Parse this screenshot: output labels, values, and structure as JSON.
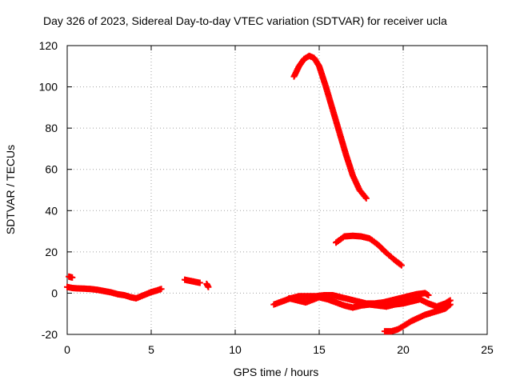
{
  "chart_data": {
    "type": "scatter",
    "title": "Day 326 of 2023, Sidereal Day-to-day VTEC variation (SDTVAR) for receiver ucla",
    "xlabel": "GPS time / hours",
    "ylabel": "SDTVAR / TECUs",
    "xlim": [
      0,
      25
    ],
    "ylim": [
      -20,
      120
    ],
    "xticks": [
      0,
      5,
      10,
      15,
      20,
      25
    ],
    "yticks": [
      -20,
      0,
      20,
      40,
      60,
      80,
      100,
      120
    ],
    "grid": true,
    "marker": "+",
    "color": "#ff0000",
    "series": [
      {
        "name": "arc-early",
        "x": [
          0.0,
          0.3,
          0.6,
          1.0,
          1.4,
          1.8,
          2.2,
          2.6,
          3.0,
          3.4,
          3.8,
          4.1,
          4.4,
          4.7,
          5.0,
          5.3,
          5.6
        ],
        "y": [
          3,
          2.5,
          2.3,
          2.2,
          2.0,
          1.6,
          1.0,
          0.4,
          -0.5,
          -1.0,
          -2.0,
          -2.5,
          -1.5,
          -0.5,
          0.5,
          1.2,
          2.0
        ]
      },
      {
        "name": "arc-early-upper",
        "x": [
          0.1,
          0.2,
          0.3
        ],
        "y": [
          8,
          7.8,
          7.6
        ]
      },
      {
        "name": "arc-7h",
        "x": [
          7.0,
          7.3,
          7.6,
          7.9
        ],
        "y": [
          6.5,
          6.0,
          5.5,
          5.0
        ]
      },
      {
        "name": "arc-8h",
        "x": [
          8.3,
          8.4
        ],
        "y": [
          4.5,
          3.0
        ]
      },
      {
        "name": "arc-peak",
        "x": [
          13.5,
          13.8,
          14.1,
          14.4,
          14.7,
          15.0,
          15.4,
          15.8,
          16.2,
          16.6,
          17.0,
          17.4,
          17.8
        ],
        "y": [
          105,
          110,
          113.5,
          115,
          114,
          110,
          100,
          89,
          78,
          67,
          57,
          50,
          46
        ]
      },
      {
        "name": "arc-28",
        "x": [
          16.0,
          16.5,
          17.0,
          17.5,
          18.0,
          18.5,
          19.0,
          19.5,
          19.9
        ],
        "y": [
          24.5,
          27.5,
          27.8,
          27.5,
          26.5,
          23.5,
          19.5,
          16,
          13.5
        ]
      },
      {
        "name": "arc-late-upper",
        "x": [
          12.3,
          12.8,
          13.3,
          13.8,
          14.3,
          14.8,
          15.3,
          15.8,
          16.3,
          16.8,
          17.3,
          17.8,
          18.3,
          18.8,
          19.3,
          19.8,
          20.3,
          20.8,
          21.3,
          21.5
        ],
        "y": [
          -5.5,
          -4,
          -2.5,
          -1.5,
          -1.5,
          -1.5,
          -1.0,
          -1.0,
          -2.0,
          -3.0,
          -4.0,
          -5.0,
          -5.0,
          -4.5,
          -3.5,
          -2.5,
          -1.5,
          -0.5,
          0,
          -1.0
        ]
      },
      {
        "name": "arc-late-lower",
        "x": [
          13.2,
          13.7,
          14.2,
          15.0,
          15.5,
          16.0,
          16.5,
          17.0,
          17.5,
          18.0,
          18.5,
          19.0,
          19.5,
          20.0,
          20.5,
          21.0,
          21.5,
          22.0,
          22.5,
          22.8
        ],
        "y": [
          -2.5,
          -3.5,
          -4.5,
          -2.0,
          -3.0,
          -4.5,
          -6.0,
          -7.0,
          -6.0,
          -5.5,
          -6.0,
          -6.5,
          -5.5,
          -5.0,
          -4.0,
          -3.0,
          -5.0,
          -6.5,
          -5.0,
          -3.5
        ]
      },
      {
        "name": "arc-late-bottom",
        "x": [
          18.9,
          19.3,
          19.7,
          20.1,
          20.5,
          20.9,
          21.3,
          21.7,
          22.1,
          22.5,
          22.8
        ],
        "y": [
          -18.5,
          -18.5,
          -17.5,
          -15.5,
          -13.5,
          -12,
          -10.5,
          -9.5,
          -8.5,
          -7.5,
          -5.5
        ]
      }
    ]
  }
}
